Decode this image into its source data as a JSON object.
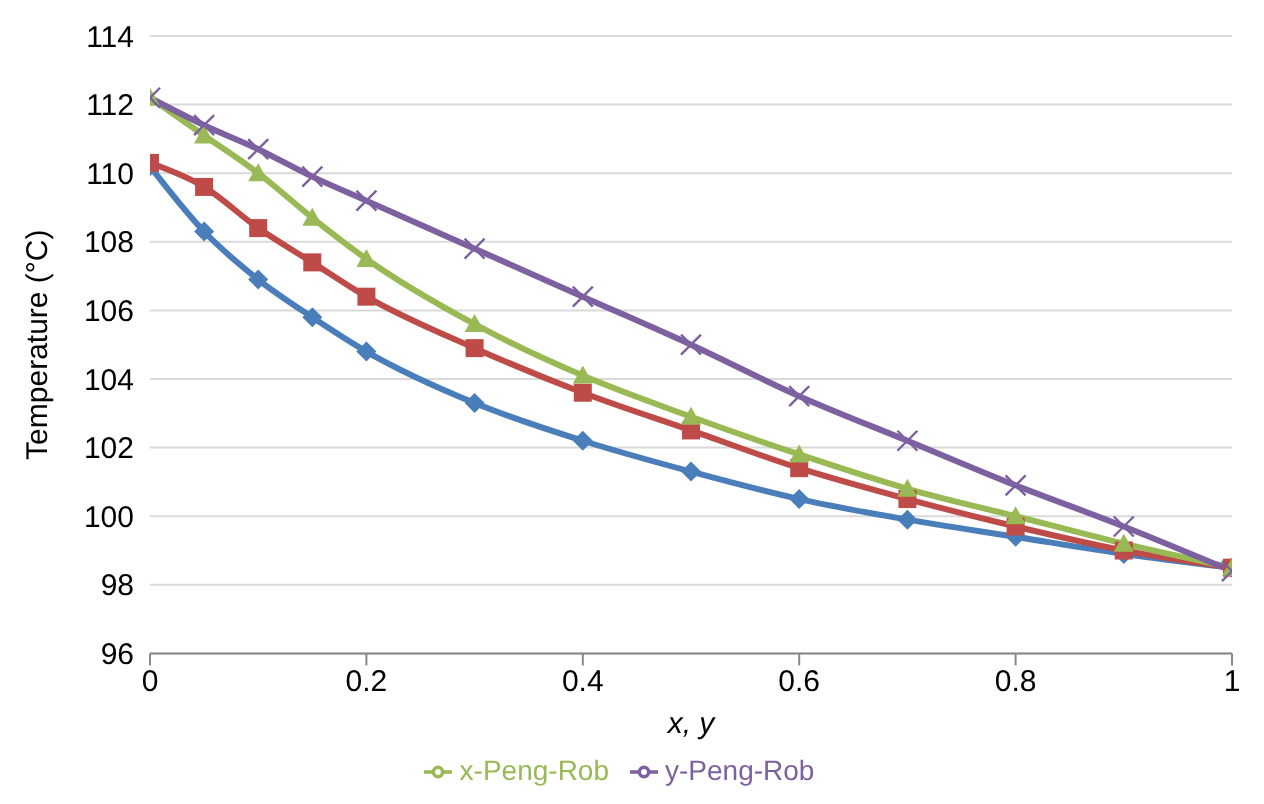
{
  "chart_data": {
    "type": "line",
    "xlabel": "x, y",
    "ylabel": "Temperature (°C)",
    "x": [
      0,
      0.05,
      0.1,
      0.15,
      0.2,
      0.3,
      0.4,
      0.5,
      0.6,
      0.7,
      0.8,
      0.9,
      1
    ],
    "series": [
      {
        "color": "#4a7ebb",
        "marker": "diamond",
        "values": [
          110.2,
          108.3,
          106.9,
          105.8,
          104.8,
          103.3,
          102.2,
          101.3,
          100.5,
          99.9,
          99.4,
          98.9,
          98.5
        ]
      },
      {
        "color": "#be4b48",
        "marker": "square",
        "values": [
          110.3,
          109.6,
          108.4,
          107.4,
          106.4,
          104.9,
          103.6,
          102.5,
          101.4,
          100.5,
          99.7,
          99.0,
          98.5
        ]
      },
      {
        "name": "x-Peng-Rob",
        "color": "#98b954",
        "marker": "triangle",
        "values": [
          112.2,
          111.1,
          110.0,
          108.7,
          107.5,
          105.6,
          104.1,
          102.9,
          101.8,
          100.8,
          100.0,
          99.2,
          98.5
        ]
      },
      {
        "name": "y-Peng-Rob",
        "color": "#7d60a0",
        "marker": "cross",
        "values": [
          112.2,
          111.4,
          110.7,
          109.9,
          109.2,
          107.8,
          106.4,
          105.0,
          103.5,
          102.2,
          100.9,
          99.7,
          98.4
        ]
      }
    ],
    "xlim": [
      0,
      1
    ],
    "xticks": [
      0,
      0.2,
      0.4,
      0.6,
      0.8,
      1
    ],
    "ylim": [
      96,
      114
    ],
    "yticks": [
      96,
      98,
      100,
      102,
      104,
      106,
      108,
      110,
      112,
      114
    ],
    "grid": "y",
    "legend": "bottom",
    "line_style": "solid"
  }
}
